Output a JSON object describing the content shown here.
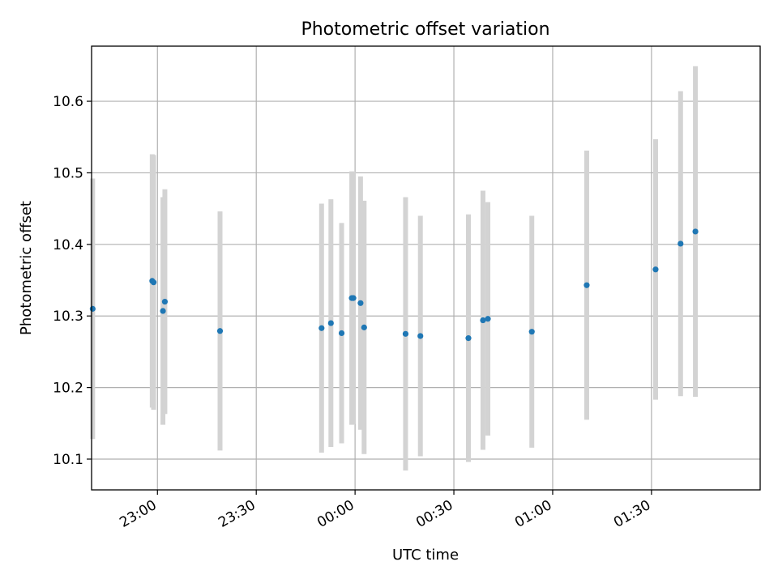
{
  "chart_data": {
    "type": "scatter",
    "title": "Photometric offset variation",
    "xlabel": "UTC time",
    "ylabel": "Photometric offset",
    "x_axis_kind": "time",
    "xlim": [
      "22:40",
      "02:03"
    ],
    "ylim": [
      10.057,
      10.677
    ],
    "x_ticks": [
      "23:00",
      "23:30",
      "00:00",
      "00:30",
      "01:00",
      "01:30"
    ],
    "y_ticks": [
      10.1,
      10.2,
      10.3,
      10.4,
      10.5,
      10.6
    ],
    "y_tick_labels": [
      "10.1",
      "10.2",
      "10.3",
      "10.4",
      "10.5",
      "10.6"
    ],
    "grid": true,
    "marker_color": "#1f77b4",
    "errorbar_color": "#d3d3d3",
    "points": [
      {
        "x": "22:40:20",
        "y": 10.31,
        "err": 0.182
      },
      {
        "x": "22:58:25",
        "y": 10.349,
        "err": 0.177
      },
      {
        "x": "22:58:50",
        "y": 10.347,
        "err": 0.178
      },
      {
        "x": "23:01:40",
        "y": 10.307,
        "err": 0.159
      },
      {
        "x": "23:02:15",
        "y": 10.32,
        "err": 0.157
      },
      {
        "x": "23:19:00",
        "y": 10.279,
        "err": 0.167
      },
      {
        "x": "23:49:50",
        "y": 10.283,
        "err": 0.174
      },
      {
        "x": "23:52:40",
        "y": 10.29,
        "err": 0.173
      },
      {
        "x": "23:55:55",
        "y": 10.276,
        "err": 0.154
      },
      {
        "x": "23:59:00",
        "y": 10.325,
        "err": 0.177
      },
      {
        "x": "23:59:30",
        "y": 10.325,
        "err": 0.176
      },
      {
        "x": "00:01:40",
        "y": 10.318,
        "err": 0.177
      },
      {
        "x": "00:02:45",
        "y": 10.284,
        "err": 0.177
      },
      {
        "x": "00:15:20",
        "y": 10.275,
        "err": 0.191
      },
      {
        "x": "00:19:50",
        "y": 10.272,
        "err": 0.168
      },
      {
        "x": "00:34:25",
        "y": 10.269,
        "err": 0.173
      },
      {
        "x": "00:38:50",
        "y": 10.294,
        "err": 0.181
      },
      {
        "x": "00:40:20",
        "y": 10.296,
        "err": 0.163
      },
      {
        "x": "00:53:40",
        "y": 10.278,
        "err": 0.162
      },
      {
        "x": "01:10:20",
        "y": 10.343,
        "err": 0.188
      },
      {
        "x": "01:31:15",
        "y": 10.365,
        "err": 0.182
      },
      {
        "x": "01:38:50",
        "y": 10.401,
        "err": 0.213
      },
      {
        "x": "01:43:20",
        "y": 10.418,
        "err": 0.231
      }
    ]
  }
}
